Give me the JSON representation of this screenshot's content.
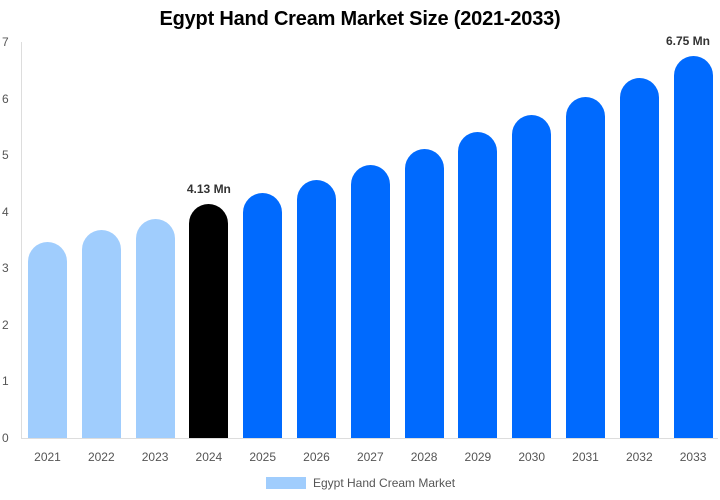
{
  "chart_data": {
    "type": "bar",
    "title": "Egypt Hand Cream Market Size (2021-2033)",
    "xlabel": "",
    "ylabel": "",
    "categories": [
      "2021",
      "2022",
      "2023",
      "2024",
      "2025",
      "2026",
      "2027",
      "2028",
      "2029",
      "2030",
      "2031",
      "2032",
      "2033"
    ],
    "series": [
      {
        "name": "Egypt Hand Cream Market",
        "values": [
          3.46,
          3.67,
          3.87,
          4.13,
          4.33,
          4.56,
          4.82,
          5.11,
          5.41,
          5.71,
          6.02,
          6.36,
          6.75
        ]
      }
    ],
    "bar_colors": [
      "#a0cdfd",
      "#a0cdfd",
      "#a0cdfd",
      "#000000",
      "#006afe",
      "#006afe",
      "#006afe",
      "#006afe",
      "#006afe",
      "#006afe",
      "#006afe",
      "#006afe",
      "#006afe"
    ],
    "annotations": [
      {
        "category": "2024",
        "text": "4.13 Mn"
      },
      {
        "category": "2033",
        "text": "6.75 Mn"
      }
    ],
    "yticks": [
      "0",
      "1",
      "2",
      "3",
      "4",
      "5",
      "6",
      "7"
    ],
    "ylim": [
      0,
      7
    ],
    "grid": false,
    "legend_position": "bottom"
  },
  "legend": {
    "label": "Egypt Hand Cream Market",
    "color": "#a0cdfd"
  }
}
